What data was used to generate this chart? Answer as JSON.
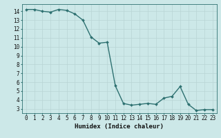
{
  "x": [
    0,
    1,
    2,
    3,
    4,
    5,
    6,
    7,
    8,
    9,
    10,
    11,
    12,
    13,
    14,
    15,
    16,
    17,
    18,
    19,
    20,
    21,
    22,
    23
  ],
  "y": [
    14.2,
    14.2,
    14.0,
    13.9,
    14.2,
    14.1,
    13.7,
    13.0,
    11.1,
    10.4,
    10.5,
    5.6,
    3.6,
    3.4,
    3.5,
    3.6,
    3.5,
    4.2,
    4.4,
    5.5,
    3.5,
    2.8,
    2.9,
    2.9
  ],
  "line_color": "#2d7070",
  "marker": "D",
  "marker_size": 2.0,
  "background_color": "#cce8e8",
  "grid_color": "#b8d4d4",
  "xlabel": "Humidex (Indice chaleur)",
  "ylim": [
    2.5,
    14.8
  ],
  "xlim": [
    -0.5,
    23.5
  ],
  "yticks": [
    3,
    4,
    5,
    6,
    7,
    8,
    9,
    10,
    11,
    12,
    13,
    14
  ],
  "xticks": [
    0,
    1,
    2,
    3,
    4,
    5,
    6,
    7,
    8,
    9,
    10,
    11,
    12,
    13,
    14,
    15,
    16,
    17,
    18,
    19,
    20,
    21,
    22,
    23
  ],
  "linewidth": 1.0,
  "xlabel_fontsize": 6.5,
  "tick_fontsize": 5.5
}
